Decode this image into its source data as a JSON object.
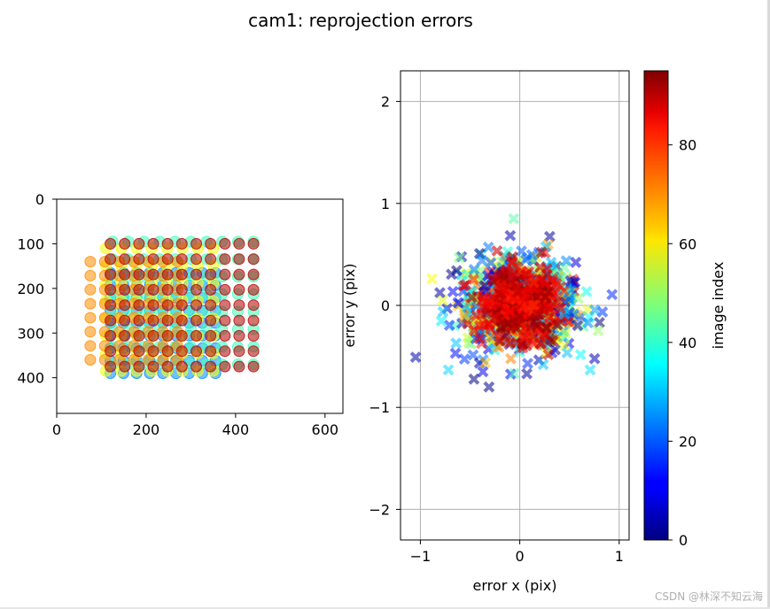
{
  "figure": {
    "title": "cam1: reprojection errors",
    "watermark": "CSDN @林深不知云海"
  },
  "chart_data": [
    {
      "type": "scatter",
      "name": "image-points",
      "title": "",
      "xlabel": "",
      "ylabel": "",
      "xlim": [
        0,
        640
      ],
      "ylim": [
        480,
        0
      ],
      "xticks": [
        0,
        200,
        400,
        600
      ],
      "yticks": [
        0,
        100,
        200,
        300,
        400
      ],
      "marker": "circle",
      "description_series": "grid corner detections colored by image index",
      "clusters": [
        {
          "image_index": 25,
          "x_range": [
            120,
            355
          ],
          "y_range": [
            165,
            390
          ],
          "rows": 9,
          "cols": 9
        },
        {
          "image_index": 42,
          "x_range": [
            125,
            440
          ],
          "y_range": [
            95,
            370
          ],
          "rows": 8,
          "cols": 10
        },
        {
          "image_index": 58,
          "x_range": [
            110,
            350
          ],
          "y_range": [
            110,
            385
          ],
          "rows": 8,
          "cols": 8
        },
        {
          "image_index": 70,
          "x_range": [
            75,
            270
          ],
          "y_range": [
            140,
            360
          ],
          "rows": 8,
          "cols": 7
        },
        {
          "image_index": 90,
          "x_range": [
            120,
            440
          ],
          "y_range": [
            100,
            375
          ],
          "rows": 9,
          "cols": 11
        }
      ]
    },
    {
      "type": "scatter",
      "name": "error-scatter",
      "title": "",
      "xlabel": "error x (pix)",
      "ylabel": "error y (pix)",
      "xlim": [
        -1.2,
        1.1
      ],
      "ylim": [
        -2.3,
        2.3
      ],
      "xticks": [
        -1,
        0,
        1
      ],
      "yticks": [
        -2,
        -1,
        0,
        1,
        2
      ],
      "grid": true,
      "marker": "x",
      "spread": {
        "x_std": 0.28,
        "y_std": 0.22,
        "x_range": [
          -1.05,
          0.95
        ],
        "y_range": [
          -0.8,
          0.85
        ]
      }
    },
    {
      "type": "colorbar",
      "name": "colorbar",
      "label": "image index",
      "range": [
        0,
        95
      ],
      "ticks": [
        0,
        20,
        40,
        60,
        80
      ],
      "colormap": "jet"
    }
  ]
}
